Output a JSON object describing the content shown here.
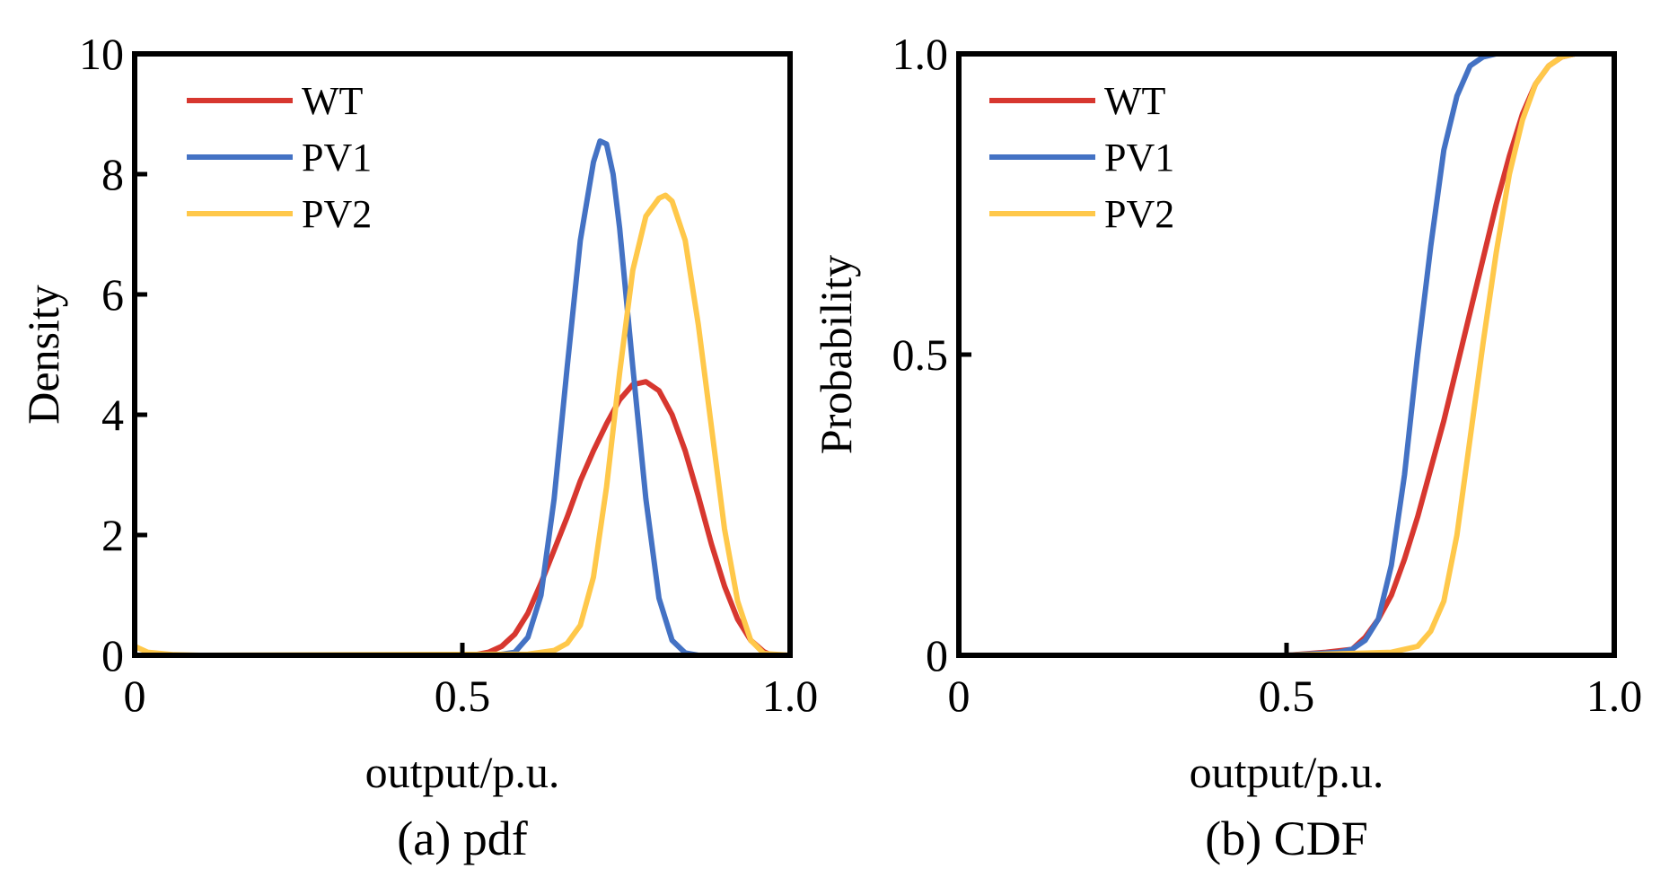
{
  "chart_data": [
    {
      "type": "line",
      "caption": "(a) pdf",
      "xlabel": "output/p.u.",
      "ylabel": "Density",
      "xlim": [
        0,
        1.0
      ],
      "ylim": [
        0,
        10
      ],
      "xticks": [
        0,
        0.5,
        1.0
      ],
      "xtick_labels": [
        "0",
        "0.5",
        "1.0"
      ],
      "yticks": [
        0,
        2,
        4,
        6,
        8,
        10
      ],
      "ytick_labels": [
        "0",
        "2",
        "4",
        "6",
        "8",
        "10"
      ],
      "grid": false,
      "legend": "top-left",
      "series": [
        {
          "name": "WT",
          "color": "#d7372f",
          "x": [
            0,
            0.5,
            0.52,
            0.54,
            0.56,
            0.58,
            0.6,
            0.62,
            0.64,
            0.66,
            0.68,
            0.7,
            0.72,
            0.74,
            0.76,
            0.78,
            0.8,
            0.82,
            0.84,
            0.86,
            0.88,
            0.9,
            0.92,
            0.94,
            0.96,
            0.97,
            1.0
          ],
          "y": [
            0,
            0,
            0.01,
            0.05,
            0.15,
            0.35,
            0.7,
            1.2,
            1.75,
            2.3,
            2.9,
            3.4,
            3.85,
            4.25,
            4.5,
            4.55,
            4.4,
            4.0,
            3.4,
            2.65,
            1.85,
            1.15,
            0.6,
            0.25,
            0.06,
            0.01,
            0
          ]
        },
        {
          "name": "PV1",
          "color": "#4472c4",
          "x": [
            0,
            0.55,
            0.58,
            0.6,
            0.62,
            0.64,
            0.66,
            0.68,
            0.7,
            0.71,
            0.72,
            0.73,
            0.74,
            0.76,
            0.78,
            0.8,
            0.82,
            0.84,
            0.86,
            1.0
          ],
          "y": [
            0,
            0,
            0.05,
            0.3,
            1.0,
            2.6,
            4.8,
            6.9,
            8.2,
            8.55,
            8.5,
            8.0,
            7.1,
            4.8,
            2.6,
            0.95,
            0.25,
            0.04,
            0,
            0
          ]
        },
        {
          "name": "PV2",
          "color": "#ffc84a",
          "x": [
            0,
            0.02,
            0.06,
            0.1,
            0.6,
            0.64,
            0.66,
            0.68,
            0.7,
            0.72,
            0.74,
            0.76,
            0.78,
            0.8,
            0.81,
            0.82,
            0.84,
            0.86,
            0.88,
            0.9,
            0.92,
            0.94,
            0.96,
            1.0
          ],
          "y": [
            0.15,
            0.05,
            0.01,
            0,
            0.02,
            0.08,
            0.2,
            0.5,
            1.3,
            2.8,
            4.7,
            6.4,
            7.3,
            7.6,
            7.65,
            7.55,
            6.9,
            5.5,
            3.8,
            2.1,
            0.9,
            0.25,
            0.03,
            0
          ]
        }
      ]
    },
    {
      "type": "line",
      "caption": "(b) CDF",
      "xlabel": "output/p.u.",
      "ylabel": "Probability",
      "xlim": [
        0,
        1.0
      ],
      "ylim": [
        0,
        1.0
      ],
      "xticks": [
        0,
        0.5,
        1.0
      ],
      "xtick_labels": [
        "0",
        "0.5",
        "1.0"
      ],
      "yticks": [
        0,
        0.5,
        1.0
      ],
      "ytick_labels": [
        "0",
        "0.5",
        "1.0"
      ],
      "grid": false,
      "legend": "top-left",
      "series": [
        {
          "name": "WT",
          "color": "#d7372f",
          "x": [
            0,
            0.5,
            0.56,
            0.6,
            0.62,
            0.64,
            0.66,
            0.68,
            0.7,
            0.72,
            0.74,
            0.76,
            0.78,
            0.8,
            0.82,
            0.84,
            0.86,
            0.88,
            0.9,
            0.92,
            0.94,
            1.0
          ],
          "y": [
            0,
            0,
            0.005,
            0.01,
            0.03,
            0.06,
            0.1,
            0.16,
            0.23,
            0.31,
            0.39,
            0.48,
            0.57,
            0.66,
            0.75,
            0.83,
            0.9,
            0.95,
            0.98,
            0.995,
            1.0,
            1.0
          ]
        },
        {
          "name": "PV1",
          "color": "#4472c4",
          "x": [
            0,
            0.5,
            0.58,
            0.6,
            0.62,
            0.64,
            0.66,
            0.68,
            0.7,
            0.72,
            0.74,
            0.76,
            0.78,
            0.8,
            0.82,
            1.0
          ],
          "y": [
            0,
            0,
            0.005,
            0.01,
            0.025,
            0.06,
            0.15,
            0.3,
            0.5,
            0.68,
            0.84,
            0.93,
            0.98,
            0.995,
            1.0,
            1.0
          ]
        },
        {
          "name": "PV2",
          "color": "#ffc84a",
          "x": [
            0,
            0.5,
            0.66,
            0.7,
            0.72,
            0.74,
            0.76,
            0.78,
            0.8,
            0.82,
            0.84,
            0.86,
            0.88,
            0.9,
            0.92,
            0.94,
            1.0
          ],
          "y": [
            0,
            0,
            0.005,
            0.015,
            0.04,
            0.09,
            0.2,
            0.36,
            0.52,
            0.67,
            0.8,
            0.89,
            0.95,
            0.98,
            0.995,
            1.0,
            1.0
          ]
        }
      ]
    }
  ]
}
